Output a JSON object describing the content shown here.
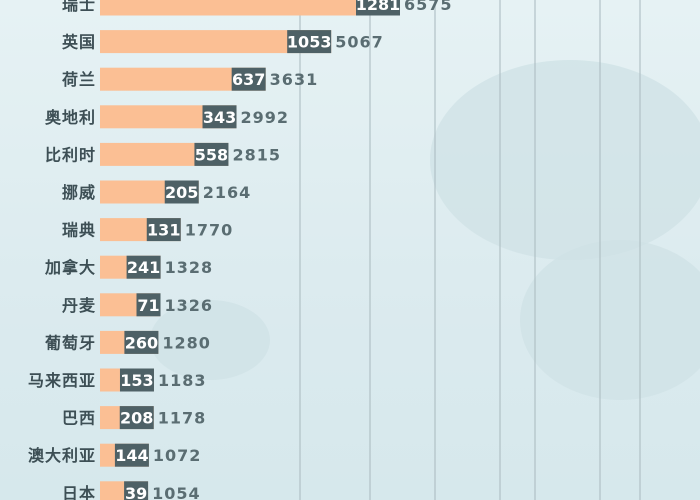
{
  "chart_data": {
    "type": "bar",
    "categories": [
      "瑞士",
      "英国",
      "荷兰",
      "奥地利",
      "比利时",
      "挪威",
      "瑞典",
      "加拿大",
      "丹麦",
      "葡萄牙",
      "马来西亚",
      "巴西",
      "澳大利亚",
      "日本"
    ],
    "series": [
      {
        "values": [
          6575,
          5067,
          3631,
          2992,
          2815,
          2164,
          1770,
          1328,
          1326,
          1280,
          1183,
          1178,
          1072,
          1054
        ]
      },
      {
        "values": [
          1281,
          1053,
          637,
          343,
          558,
          205,
          131,
          241,
          71,
          260,
          153,
          208,
          144,
          39
        ]
      }
    ],
    "grid": true,
    "colors": {
      "bar": "#fbbf94",
      "badge": "#4e6166",
      "value_text": "#5a6d72",
      "category_text": "#3d4f55"
    }
  }
}
